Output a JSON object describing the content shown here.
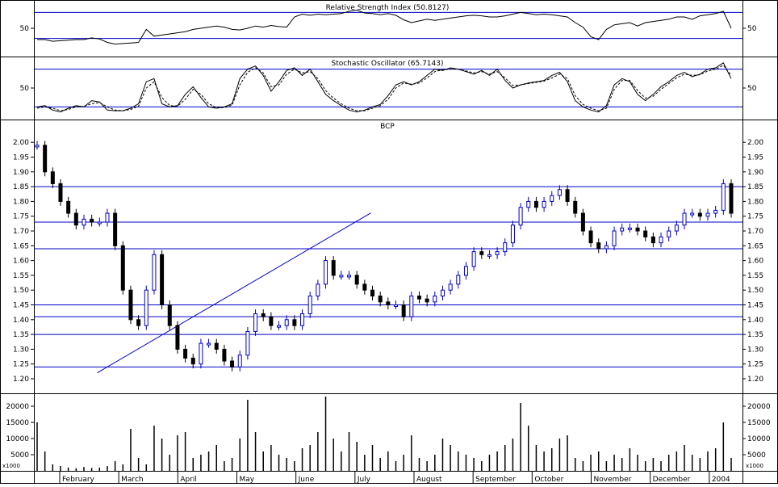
{
  "chart_data": [
    {
      "type": "line",
      "title": "Relative Strength Index (50.8127)",
      "ylim": [
        0,
        100
      ],
      "y_ticks": [
        "50"
      ],
      "reference_lines": [
        78,
        32
      ],
      "series": [
        {
          "values": [
            30,
            30,
            27,
            28,
            29,
            30,
            30,
            33,
            31,
            25,
            22,
            23,
            24,
            25,
            48,
            36,
            38,
            40,
            42,
            44,
            48,
            50,
            52,
            54,
            52,
            48,
            47,
            50,
            54,
            52,
            55,
            53,
            52,
            70,
            75,
            73,
            75,
            74,
            75,
            76,
            80,
            82,
            77,
            76,
            74,
            76,
            73,
            65,
            60,
            63,
            66,
            64,
            66,
            68,
            70,
            72,
            73,
            72,
            70,
            70,
            72,
            75,
            78,
            76,
            74,
            75,
            74,
            72,
            70,
            60,
            52,
            35,
            30,
            48,
            56,
            58,
            60,
            54,
            60,
            62,
            64,
            66,
            70,
            70,
            66,
            72,
            74,
            76,
            80,
            50
          ]
        }
      ],
      "color": "#000000",
      "line_color": "#0000c8"
    },
    {
      "type": "line",
      "title": "Stochastic Oscillator (65.7143)",
      "ylim": [
        0,
        100
      ],
      "y_ticks": [
        "50"
      ],
      "reference_lines": [
        80,
        20
      ],
      "series": [
        {
          "values": [
            20,
            22,
            15,
            12,
            18,
            22,
            20,
            30,
            28,
            15,
            14,
            14,
            18,
            25,
            60,
            65,
            25,
            20,
            22,
            40,
            52,
            35,
            20,
            18,
            20,
            25,
            65,
            80,
            85,
            70,
            45,
            60,
            78,
            82,
            70,
            80,
            60,
            40,
            30,
            22,
            15,
            12,
            15,
            20,
            24,
            38,
            55,
            60,
            55,
            60,
            70,
            80,
            78,
            82,
            80,
            76,
            72,
            78,
            70,
            80,
            62,
            50,
            55,
            58,
            60,
            62,
            70,
            75,
            60,
            30,
            20,
            15,
            12,
            22,
            55,
            65,
            60,
            40,
            30,
            40,
            52,
            60,
            70,
            75,
            68,
            72,
            80,
            82,
            90,
            65
          ]
        },
        {
          "values": [
            18,
            20,
            18,
            14,
            16,
            20,
            21,
            25,
            27,
            20,
            15,
            14,
            16,
            21,
            50,
            60,
            35,
            22,
            21,
            32,
            48,
            40,
            25,
            19,
            19,
            23,
            55,
            75,
            82,
            74,
            52,
            55,
            72,
            80,
            74,
            76,
            65,
            46,
            34,
            25,
            18,
            14,
            14,
            18,
            22,
            32,
            50,
            58,
            56,
            58,
            66,
            76,
            79,
            80,
            80,
            77,
            74,
            76,
            72,
            76,
            66,
            54,
            55,
            57,
            59,
            61,
            66,
            72,
            65,
            38,
            24,
            18,
            14,
            18,
            48,
            62,
            62,
            46,
            34,
            37,
            48,
            57,
            66,
            72,
            70,
            71,
            77,
            80,
            86,
            70
          ]
        }
      ],
      "color": "#000000",
      "line_color": "#0000c8"
    },
    {
      "type": "line",
      "title": "BCP",
      "ylim": [
        1.15,
        2.05
      ],
      "y_ticks": [
        "2.00",
        "1.95",
        "1.90",
        "1.85",
        "1.80",
        "1.75",
        "1.70",
        "1.65",
        "1.60",
        "1.55",
        "1.50",
        "1.45",
        "1.40",
        "1.35",
        "1.30",
        "1.25",
        "1.20"
      ],
      "series": [
        {
          "values": [
            1.99,
            1.9,
            1.86,
            1.8,
            1.76,
            1.72,
            1.74,
            1.73,
            1.73,
            1.76,
            1.65,
            1.5,
            1.4,
            1.38,
            1.5,
            1.62,
            1.45,
            1.38,
            1.3,
            1.27,
            1.25,
            1.32,
            1.32,
            1.3,
            1.26,
            1.24,
            1.28,
            1.36,
            1.42,
            1.41,
            1.38,
            1.38,
            1.4,
            1.38,
            1.42,
            1.48,
            1.52,
            1.6,
            1.55,
            1.55,
            1.55,
            1.52,
            1.5,
            1.48,
            1.46,
            1.45,
            1.45,
            1.41,
            1.48,
            1.47,
            1.46,
            1.48,
            1.5,
            1.52,
            1.55,
            1.58,
            1.63,
            1.62,
            1.62,
            1.63,
            1.66,
            1.72,
            1.78,
            1.8,
            1.78,
            1.8,
            1.82,
            1.84,
            1.8,
            1.76,
            1.7,
            1.66,
            1.64,
            1.65,
            1.7,
            1.71,
            1.71,
            1.7,
            1.68,
            1.66,
            1.68,
            1.7,
            1.72,
            1.76,
            1.76,
            1.75,
            1.76,
            1.77,
            1.86,
            1.76
          ]
        }
      ],
      "horizontal_lines": [
        1.85,
        1.73,
        1.64,
        1.45,
        1.41,
        1.35,
        1.24
      ],
      "trend_lines": [
        {
          "from": [
            7.7,
            1.22
          ],
          "to": [
            34.1,
            1.75
          ]
        }
      ],
      "up_color": "#0000c8",
      "down_color": "#000000"
    },
    {
      "type": "bar",
      "title": "",
      "ylim": [
        0,
        25000
      ],
      "y_ticks": [
        "20000",
        "15000",
        "10000",
        "5000"
      ],
      "unit_label": "x1000",
      "values": [
        15000,
        6000,
        2000,
        1500,
        1000,
        800,
        1200,
        900,
        1000,
        1500,
        3000,
        2000,
        13000,
        4000,
        2000,
        14000,
        10000,
        5000,
        11000,
        12000,
        4000,
        5000,
        6000,
        8000,
        3000,
        4000,
        10000,
        22000,
        12000,
        6000,
        8000,
        5000,
        4000,
        3000,
        7000,
        8000,
        12000,
        23000,
        10000,
        6000,
        12000,
        9000,
        5000,
        8000,
        4000,
        6000,
        3000,
        5000,
        11000,
        4000,
        3000,
        5000,
        10000,
        8000,
        6000,
        5000,
        4000,
        3000,
        5000,
        6000,
        8000,
        10000,
        21000,
        14000,
        8000,
        6000,
        7000,
        10000,
        11000,
        4000,
        3000,
        5000,
        6000,
        3000,
        5000,
        4000,
        7000,
        5000,
        3000,
        4000,
        3000,
        5000,
        6000,
        8000,
        5000,
        4000,
        6000,
        7000,
        15000,
        4000
      ],
      "color": "#000000"
    }
  ],
  "x_axis": {
    "labels": [
      "February",
      "March",
      "April",
      "May",
      "June",
      "July",
      "August",
      "September",
      "October",
      "November",
      "December",
      "2004"
    ]
  }
}
